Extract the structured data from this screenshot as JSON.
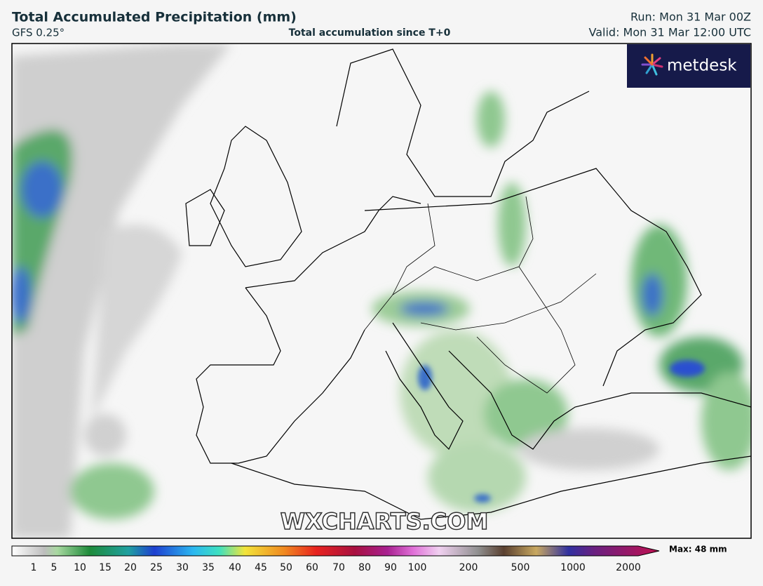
{
  "header": {
    "title": "Total Accumulated Precipitation (mm)",
    "model": "GFS 0.25°",
    "subtitle": "Total accumulation since T+0",
    "run": "Run: Mon 31 Mar 00Z",
    "valid": "Valid: Mon 31 Mar 12:00 UTC"
  },
  "logo": "metdesk",
  "watermark": "WXCHARTS.COM",
  "colorbar": {
    "labels": [
      "1",
      "5",
      "10",
      "15",
      "20",
      "25",
      "30",
      "35",
      "40",
      "45",
      "50",
      "60",
      "70",
      "80",
      "90",
      "100",
      "200",
      "500",
      "1000",
      "2000"
    ],
    "max": "Max: 48 mm"
  }
}
